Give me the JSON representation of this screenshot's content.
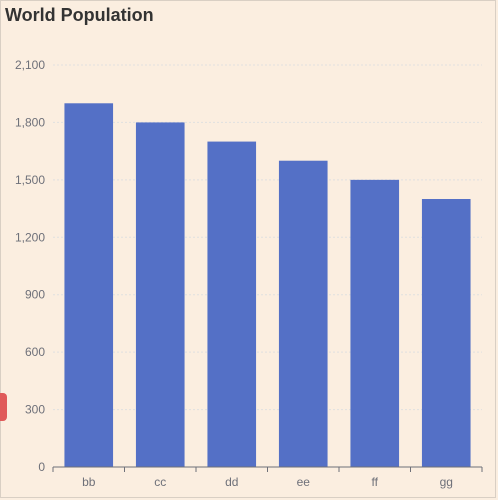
{
  "chart_data": {
    "type": "bar",
    "title": "World Population",
    "categories": [
      "bb",
      "cc",
      "dd",
      "ee",
      "ff",
      "gg"
    ],
    "values": [
      1900,
      1800,
      1700,
      1600,
      1500,
      1400
    ],
    "ylim": [
      0,
      2100
    ],
    "yticks": [
      0,
      300,
      600,
      900,
      1200,
      1500,
      1800,
      2100
    ],
    "grid": true,
    "bar_color": "#5470c6"
  },
  "colors": {
    "background": "#fbeee0",
    "grid": "#e0e0e0",
    "axis": "#6e7079",
    "side_tab": "#e05a5a"
  }
}
